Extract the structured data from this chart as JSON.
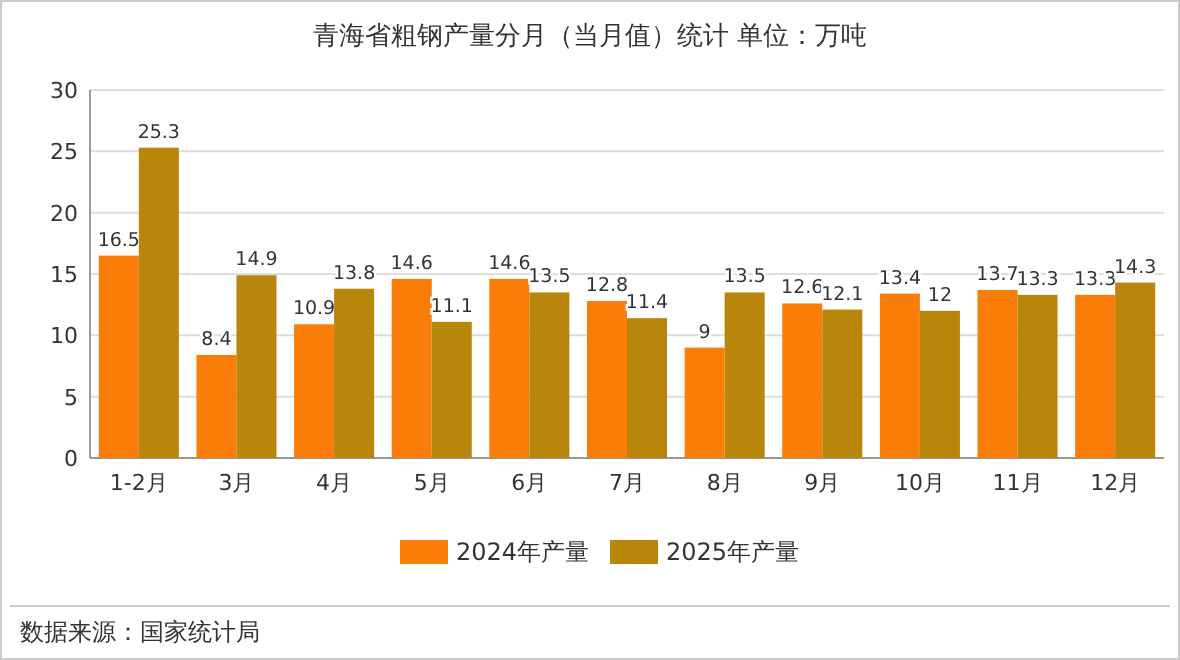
{
  "chart_data": {
    "type": "bar",
    "title": "青海省粗钢产量分月（当月值）统计  单位：万吨",
    "categories": [
      "1-2月",
      "3月",
      "4月",
      "5月",
      "6月",
      "7月",
      "8月",
      "9月",
      "10月",
      "11月",
      "12月"
    ],
    "series": [
      {
        "name": "2024年产量",
        "color": "#fa7d0a",
        "values": [
          16.5,
          8.4,
          10.9,
          14.6,
          14.6,
          12.8,
          9,
          12.6,
          13.4,
          13.7,
          13.3
        ]
      },
      {
        "name": "2025年产量",
        "color": "#b8860b",
        "values": [
          25.3,
          14.9,
          13.8,
          11.1,
          13.5,
          11.4,
          13.5,
          12.1,
          12,
          13.3,
          14.3
        ]
      }
    ],
    "ylim": [
      0,
      30
    ],
    "yticks": [
      0,
      5,
      10,
      15,
      20,
      25,
      30
    ],
    "grid": "y",
    "legend": "bottom",
    "data_labels": true,
    "annotations": [
      "数据来源：国家统计局"
    ]
  }
}
